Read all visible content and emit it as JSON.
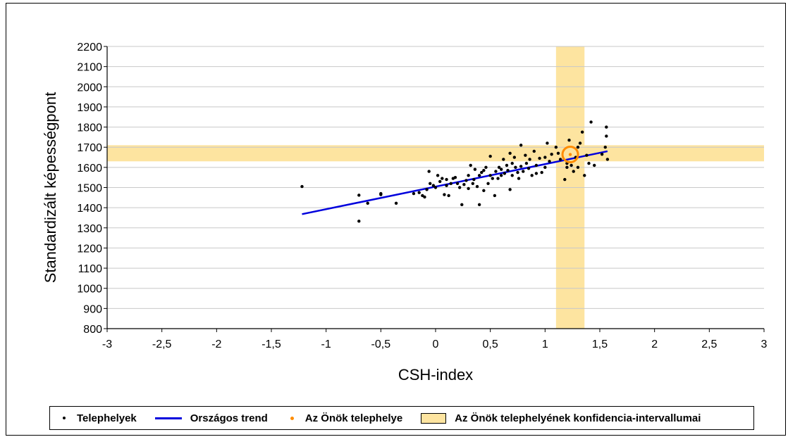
{
  "chart_data": {
    "type": "scatter",
    "xlabel": "CSH-index",
    "ylabel": "Standardizált képességpont",
    "xlim": [
      -3,
      3
    ],
    "ylim": [
      800,
      2200
    ],
    "xticks": [
      "-3",
      "-2,5",
      "-2",
      "-1,5",
      "-1",
      "-0,5",
      "0",
      "0,5",
      "1",
      "1,5",
      "2",
      "2,5",
      "3"
    ],
    "yticks": [
      "800",
      "900",
      "1000",
      "1100",
      "1200",
      "1300",
      "1400",
      "1500",
      "1600",
      "1700",
      "1800",
      "1900",
      "2000",
      "2100",
      "2200"
    ],
    "grid": "horizontal",
    "legend_position": "bottom",
    "confidence_band_y": [
      1630,
      1710
    ],
    "confidence_band_x": [
      1.1,
      1.36
    ],
    "trend": {
      "x": [
        -1.22,
        1.57
      ],
      "y": [
        1368,
        1680
      ]
    },
    "own_site": {
      "x": 1.23,
      "y": 1664
    },
    "points": [
      [
        -1.22,
        1505
      ],
      [
        -0.7,
        1333
      ],
      [
        -0.7,
        1462
      ],
      [
        -0.62,
        1422
      ],
      [
        -0.5,
        1465
      ],
      [
        -0.5,
        1470
      ],
      [
        -0.36,
        1422
      ],
      [
        -0.2,
        1470
      ],
      [
        -0.15,
        1475
      ],
      [
        -0.12,
        1460
      ],
      [
        -0.1,
        1453
      ],
      [
        -0.06,
        1580
      ],
      [
        -0.05,
        1520
      ],
      [
        -0.02,
        1510
      ],
      [
        0.0,
        1500
      ],
      [
        0.02,
        1560
      ],
      [
        0.04,
        1530
      ],
      [
        0.06,
        1545
      ],
      [
        0.08,
        1465
      ],
      [
        0.1,
        1510
      ],
      [
        0.12,
        1460
      ],
      [
        0.14,
        1520
      ],
      [
        0.16,
        1545
      ],
      [
        0.18,
        1550
      ],
      [
        0.2,
        1520
      ],
      [
        0.22,
        1500
      ],
      [
        0.24,
        1415
      ],
      [
        0.26,
        1515
      ],
      [
        0.28,
        1535
      ],
      [
        0.3,
        1495
      ],
      [
        0.3,
        1560
      ],
      [
        0.32,
        1610
      ],
      [
        0.34,
        1520
      ],
      [
        0.35,
        1540
      ],
      [
        0.36,
        1590
      ],
      [
        0.38,
        1505
      ],
      [
        0.4,
        1415
      ],
      [
        0.4,
        1560
      ],
      [
        0.42,
        1575
      ],
      [
        0.44,
        1485
      ],
      [
        0.46,
        1600
      ],
      [
        0.48,
        1520
      ],
      [
        0.5,
        1560
      ],
      [
        0.5,
        1655
      ],
      [
        0.52,
        1545
      ],
      [
        0.54,
        1460
      ],
      [
        0.55,
        1580
      ],
      [
        0.57,
        1545
      ],
      [
        0.58,
        1600
      ],
      [
        0.6,
        1560
      ],
      [
        0.62,
        1640
      ],
      [
        0.63,
        1570
      ],
      [
        0.65,
        1610
      ],
      [
        0.66,
        1585
      ],
      [
        0.68,
        1490
      ],
      [
        0.7,
        1620
      ],
      [
        0.7,
        1560
      ],
      [
        0.72,
        1650
      ],
      [
        0.73,
        1600
      ],
      [
        0.75,
        1575
      ],
      [
        0.76,
        1545
      ],
      [
        0.78,
        1605
      ],
      [
        0.78,
        1710
      ],
      [
        0.8,
        1580
      ],
      [
        0.82,
        1660
      ],
      [
        0.83,
        1620
      ],
      [
        0.85,
        1595
      ],
      [
        0.86,
        1640
      ],
      [
        0.88,
        1560
      ],
      [
        0.9,
        1680
      ],
      [
        0.92,
        1610
      ],
      [
        0.95,
        1645
      ],
      [
        0.97,
        1575
      ],
      [
        1.0,
        1600
      ],
      [
        1.0,
        1650
      ],
      [
        1.02,
        1720
      ],
      [
        1.04,
        1630
      ],
      [
        1.06,
        1665
      ],
      [
        1.1,
        1700
      ],
      [
        1.14,
        1640
      ],
      [
        1.18,
        1540
      ],
      [
        1.2,
        1600
      ],
      [
        1.22,
        1735
      ],
      [
        1.24,
        1610
      ],
      [
        1.26,
        1580
      ],
      [
        1.28,
        1650
      ],
      [
        1.3,
        1700
      ],
      [
        1.32,
        1720
      ],
      [
        1.34,
        1775
      ],
      [
        1.36,
        1560
      ],
      [
        1.38,
        1660
      ],
      [
        1.4,
        1620
      ],
      [
        1.42,
        1825
      ],
      [
        1.45,
        1610
      ],
      [
        1.52,
        1665
      ],
      [
        1.55,
        1700
      ],
      [
        1.56,
        1800
      ],
      [
        1.56,
        1755
      ],
      [
        1.57,
        1640
      ],
      [
        0.68,
        1670
      ],
      [
        0.6,
        1590
      ],
      [
        0.1,
        1540
      ],
      [
        -0.08,
        1490
      ],
      [
        0.44,
        1585
      ],
      [
        0.92,
        1570
      ],
      [
        1.12,
        1670
      ],
      [
        1.2,
        1620
      ],
      [
        1.3,
        1600
      ]
    ]
  },
  "legend": {
    "points": "Telephelyek",
    "trend": "Országos trend",
    "own_site": "Az Önök telephelye",
    "band": "Az Önök telephelyének konfidencia-intervallumai"
  },
  "colors": {
    "trend": "#0000dd",
    "point": "#000000",
    "own_site": "#ff8c00",
    "band": "#fde4a0"
  }
}
